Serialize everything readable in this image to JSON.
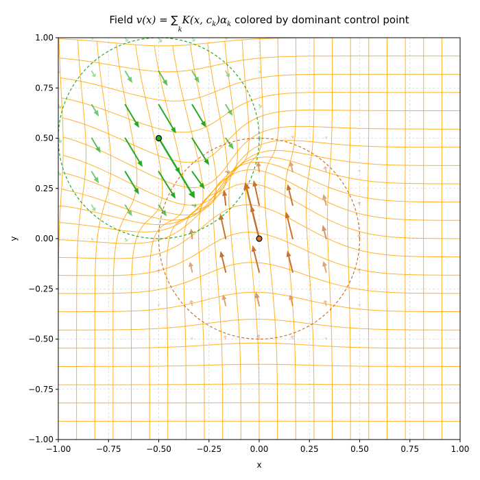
{
  "chart_data": {
    "type": "quiver",
    "title": {
      "prefix": "Field ",
      "lhs": "v(x)",
      "eq": " = ",
      "sum": "∑",
      "sub": "k",
      "kernel": "K(x, c",
      "kernel_sub": "k",
      "close": ")α",
      "alpha_sub": "k",
      "suffix": " colored by dominant control point"
    },
    "xlabel": "x",
    "ylabel": "y",
    "xlim": [
      -1.0,
      1.0
    ],
    "ylim": [
      -1.0,
      1.0
    ],
    "xticks": [
      -1.0,
      -0.75,
      -0.5,
      -0.25,
      0.0,
      0.25,
      0.5,
      0.75,
      1.0
    ],
    "yticks": [
      -1.0,
      -0.75,
      -0.5,
      -0.25,
      0.0,
      0.25,
      0.5,
      0.75,
      1.0
    ],
    "xtick_labels": [
      "−1.00",
      "−0.75",
      "−0.50",
      "−0.25",
      "0.00",
      "0.25",
      "0.50",
      "0.75",
      "1.00"
    ],
    "ytick_labels": [
      "−1.00",
      "−0.75",
      "−0.50",
      "−0.25",
      "0.00",
      "0.25",
      "0.50",
      "0.75",
      "1.00"
    ],
    "grid": true,
    "warped_grid_color": "#ffa500",
    "control_points": [
      {
        "x": -0.5,
        "y": 0.5,
        "alpha": [
          0.18,
          -0.3
        ],
        "radius": 0.5,
        "color": "#22aa22"
      },
      {
        "x": 0.0,
        "y": 0.0,
        "alpha": [
          -0.07,
          0.28
        ],
        "radius": 0.5,
        "color": "#c8702e"
      }
    ],
    "kernel_sigma": 0.25,
    "quiver_grid_n": 13
  }
}
